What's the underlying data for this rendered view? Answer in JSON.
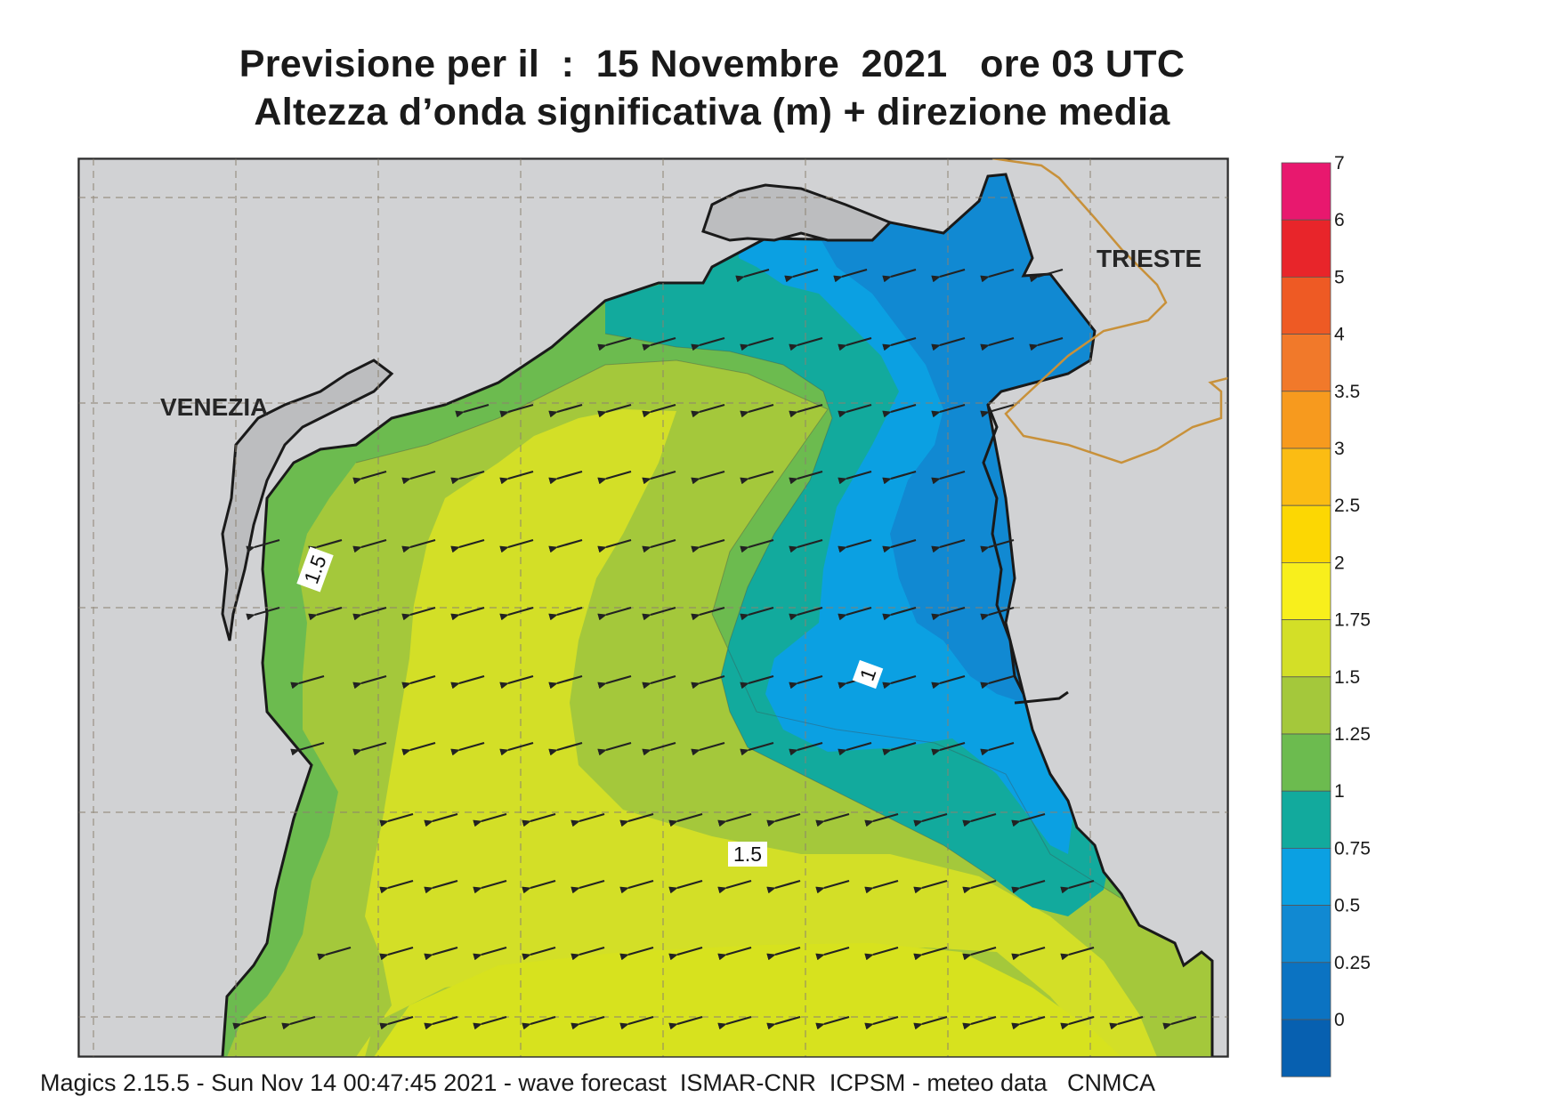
{
  "header": {
    "title_line1": "Previsione per il  :  15 Novembre  2021   ore 03 UTC",
    "title_line2": "Altezza d’onda significativa (m) + direzione media"
  },
  "map": {
    "cities": [
      "VENEZIA",
      "TRIESTE"
    ],
    "contour_labels": [
      "1.5",
      "1",
      "1.5"
    ],
    "land_color": "#d1d2d4",
    "coast_color": "#1a1a1a",
    "border_color": "#c8913a",
    "arrow_color": "#222222",
    "mean_wave_direction": "from east-northeast toward west-southwest"
  },
  "colorbar": {
    "levels": [
      "7",
      "6",
      "5",
      "4",
      "3.5",
      "3",
      "2.5",
      "2",
      "1.75",
      "1.5",
      "1.25",
      "1",
      "0.75",
      "0.5",
      "0.25",
      "0"
    ],
    "colors": [
      "#e8186e",
      "#e8252a",
      "#ee5a24",
      "#f1792a",
      "#f79a1e",
      "#fbbc13",
      "#fcd703",
      "#f8ef1c",
      "#d3df27",
      "#a4c83b",
      "#6cbb4f",
      "#12aa9d",
      "#0ba0e2",
      "#1189d2",
      "#0b73c2",
      "#0760b0"
    ]
  },
  "footer": {
    "text": "Magics 2.15.5 - Sun Nov 14 00:47:45 2021 - wave forecast  ISMAR-CNR  ICPSM - meteo data   CNMCA"
  }
}
